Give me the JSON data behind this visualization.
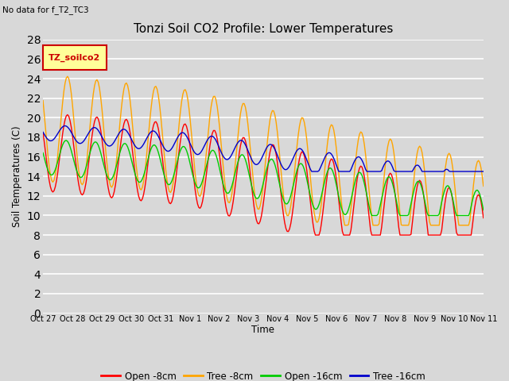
{
  "title": "Tonzi Soil CO2 Profile: Lower Temperatures",
  "subtitle": "No data for f_T2_TC3",
  "xlabel": "Time",
  "ylabel": "Soil Temperatures (C)",
  "ylim": [
    0,
    28
  ],
  "yticks": [
    0,
    2,
    4,
    6,
    8,
    10,
    12,
    14,
    16,
    18,
    20,
    22,
    24,
    26,
    28
  ],
  "xtick_labels": [
    "Oct 27",
    "Oct 28",
    "Oct 29",
    "Oct 30",
    "Oct 31",
    "Nov 1",
    "Nov 2",
    "Nov 3",
    "Nov 4",
    "Nov 5",
    "Nov 6",
    "Nov 7",
    "Nov 8",
    "Nov 9",
    "Nov 10",
    "Nov 11"
  ],
  "legend_label": "TZ_soilco2",
  "line_labels": [
    "Open -8cm",
    "Tree -8cm",
    "Open -16cm",
    "Tree -16cm"
  ],
  "line_colors": [
    "#ff0000",
    "#ffa500",
    "#00cc00",
    "#0000cc"
  ],
  "bg_color": "#d8d8d8",
  "grid_color": "#ffffff"
}
